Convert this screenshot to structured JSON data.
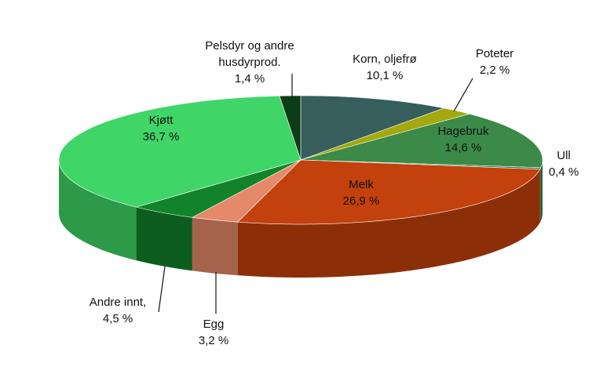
{
  "chart_data": {
    "type": "pie",
    "title": "",
    "slices": [
      {
        "name": "Korn, oljefrø",
        "value": 10.1,
        "label": "10,1 %",
        "color": "#355e5c"
      },
      {
        "name": "Poteter",
        "value": 2.2,
        "label": "2,2 %",
        "color": "#a3a80e"
      },
      {
        "name": "Hagebruk",
        "value": 14.6,
        "label": "14,6 %",
        "color": "#3b8a48"
      },
      {
        "name": "Ull",
        "value": 0.4,
        "label": "0,4 %",
        "color": "#2f6e3a"
      },
      {
        "name": "Melk",
        "value": 26.9,
        "label": "26,9 %",
        "color": "#c2410c"
      },
      {
        "name": "Egg",
        "value": 3.2,
        "label": "3,2 %",
        "color": "#e5896a"
      },
      {
        "name": "Andre innt,",
        "value": 4.5,
        "label": "4,5 %",
        "color": "#12832a"
      },
      {
        "name": "Kjøtt",
        "value": 36.7,
        "label": "36,7 %",
        "color": "#3fd667"
      },
      {
        "name": "Pelsdyr og andre husdyrprod.",
        "name_lines": [
          "Pelsdyr og andre",
          "husdyrprod."
        ],
        "value": 1.4,
        "label": "1,4 %",
        "color": "#0c3d17"
      }
    ]
  }
}
